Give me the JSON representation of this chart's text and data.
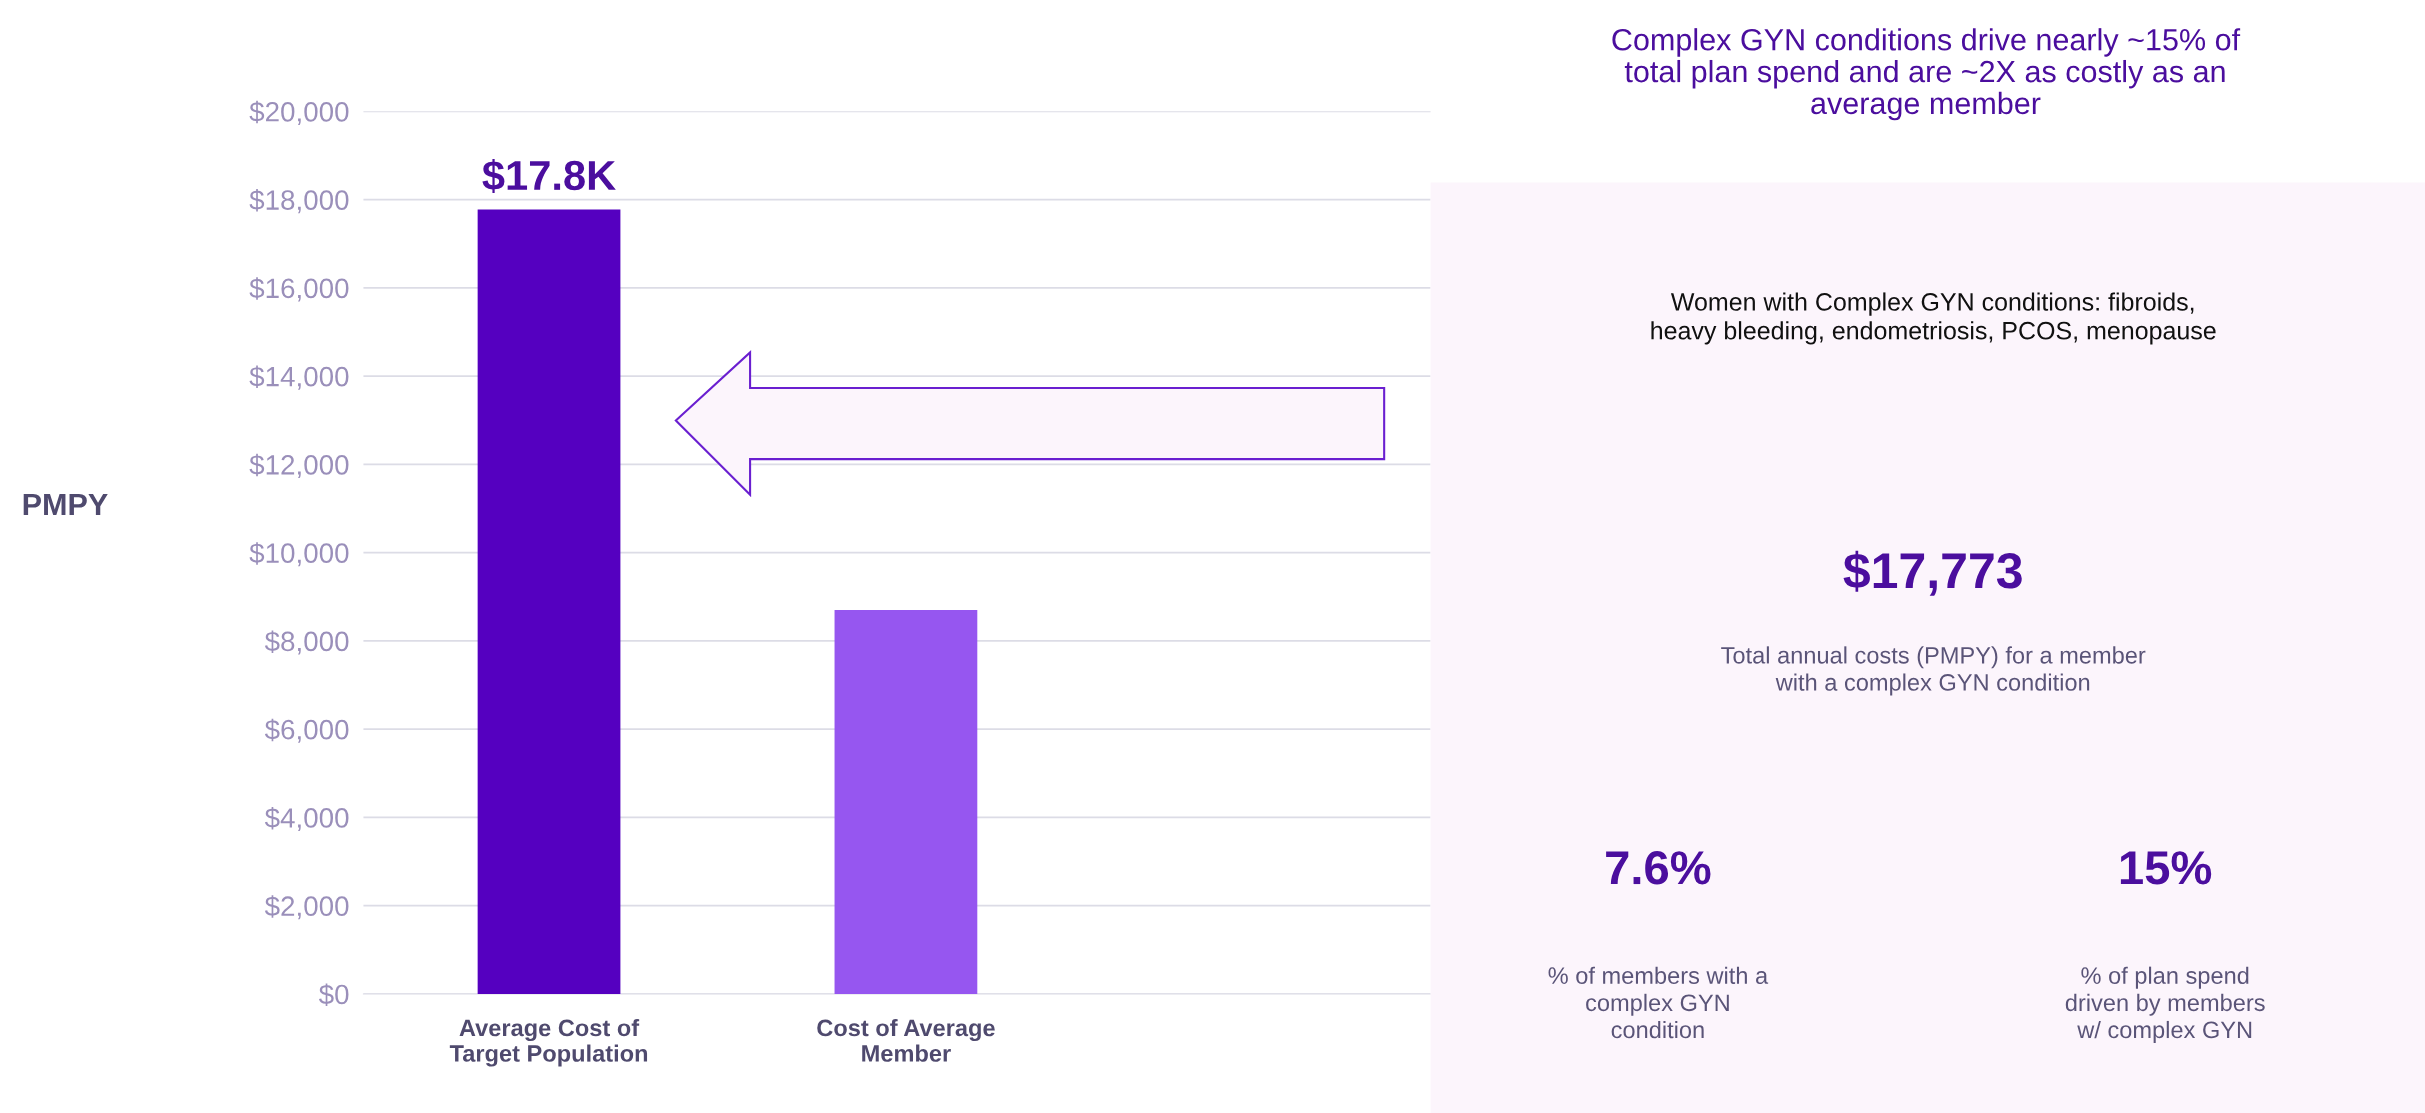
{
  "chart_data": {
    "type": "bar",
    "title": "Complex GYN conditions drive nearly ~15% of\ntotal plan spend and are ~2X as costly as an\naverage member",
    "ylabel": "PMPY",
    "categories": [
      "Average Cost of\nTarget Population",
      "Cost of Average\nMember"
    ],
    "values": [
      17773,
      8700
    ],
    "colors": [
      "#5500c0",
      "#9656f0"
    ],
    "value_labels": [
      "$17.8K",
      null
    ],
    "ylim": [
      0,
      20000
    ],
    "yticks": [
      {
        "value": 0,
        "label": "$0"
      },
      {
        "value": 2000,
        "label": "$2,000"
      },
      {
        "value": 4000,
        "label": "$4,000"
      },
      {
        "value": 6000,
        "label": "$6,000"
      },
      {
        "value": 8000,
        "label": "$8,000"
      },
      {
        "value": 10000,
        "label": "$10,000"
      },
      {
        "value": 12000,
        "label": "$12,000"
      },
      {
        "value": 14000,
        "label": "$14,000"
      },
      {
        "value": 16000,
        "label": "$16,000"
      },
      {
        "value": 18000,
        "label": "$18,000"
      },
      {
        "value": 20000,
        "label": "$20,000"
      }
    ],
    "grid": "y",
    "annotations": [
      "Women with Complex GYN conditions: fibroids,\nheavy bleeding, endometriosis, PCOS, menopause",
      "$17,773",
      "Total annual costs (PMPY) for a member\nwith a complex GYN condition",
      "7.6%",
      "% of members with a\ncomplex GYN\ncondition",
      "15%",
      "% of plan spend\ndriven by members\nw/ complex GYN"
    ]
  }
}
